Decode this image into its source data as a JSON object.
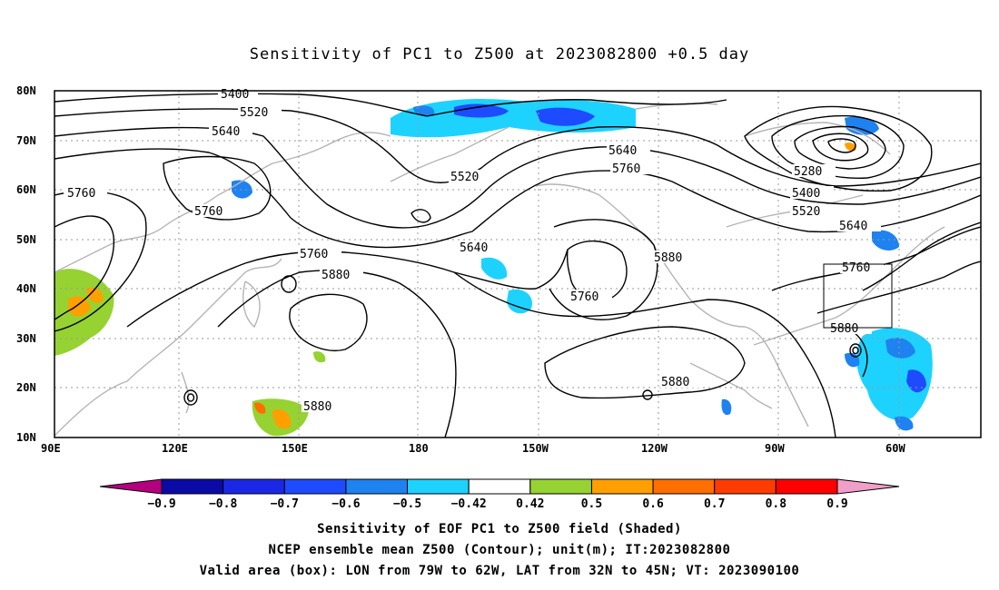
{
  "title": "Sensitivity of PC1 to Z500 at 2023082800 +0.5 day",
  "map": {
    "lon_range": [
      "90E",
      "50W"
    ],
    "lat_range": [
      "10N",
      "80N"
    ],
    "lat_ticks": [
      "10N",
      "20N",
      "30N",
      "40N",
      "50N",
      "60N",
      "70N",
      "80N"
    ],
    "lon_ticks": [
      "90E",
      "120E",
      "150E",
      "180",
      "150W",
      "120W",
      "90W",
      "60W"
    ],
    "contour_labels": [
      "5400",
      "5520",
      "5640",
      "5760",
      "5760",
      "5760",
      "5640",
      "5520",
      "5760",
      "5880",
      "5640",
      "5760",
      "5640",
      "5760",
      "5880",
      "5280",
      "5400",
      "5520",
      "5640",
      "5760",
      "5880",
      "5880",
      "5880"
    ],
    "valid_box": {
      "lon": [
        "79W",
        "62W"
      ],
      "lat": [
        "32N",
        "45N"
      ]
    },
    "colors": {
      "coast": "#b4b4b4",
      "contour": "#000000",
      "grid": "#999999"
    }
  },
  "colorbar": {
    "labels": [
      "-0.9",
      "-0.8",
      "-0.7",
      "-0.6",
      "-0.5",
      "-0.42",
      "0.42",
      "0.5",
      "0.6",
      "0.7",
      "0.8",
      "0.9"
    ],
    "colors": [
      "#b4007e",
      "#0a0aa5",
      "#1a28e6",
      "#1e4bff",
      "#1e82f0",
      "#1ed2ff",
      "#ffffff",
      "#96d232",
      "#ffa000",
      "#ff6e00",
      "#ff3c00",
      "#ff0000",
      "#f0a0c8"
    ]
  },
  "captions": [
    "Sensitivity of EOF PC1 to Z500 field (Shaded)",
    "NCEP ensemble mean Z500 (Contour); unit(m); IT:2023082800",
    "Valid area (box): LON from 79W to 62W, LAT from 32N to 45N; VT: 2023090100"
  ]
}
